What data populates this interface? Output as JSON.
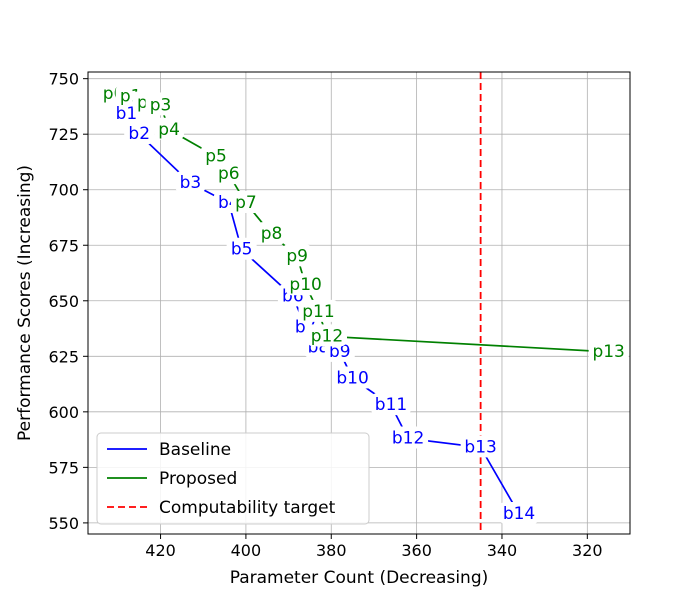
{
  "chart_data": {
    "type": "line",
    "title": "",
    "xlabel": "Parameter Count (Decreasing)",
    "ylabel": "Performance Scores (Increasing)",
    "xlim": [
      437,
      310
    ],
    "ylim": [
      545,
      753
    ],
    "x_ticks": [
      420,
      400,
      380,
      360,
      340,
      320
    ],
    "y_ticks": [
      550,
      575,
      600,
      625,
      650,
      675,
      700,
      725,
      750
    ],
    "grid": true,
    "legend_position": "bottom-left",
    "series": [
      {
        "name": "Baseline",
        "color": "#0000ff",
        "points": [
          {
            "label": "b0",
            "x": 431,
            "y": 743
          },
          {
            "label": "b1",
            "x": 428,
            "y": 734
          },
          {
            "label": "b2",
            "x": 425,
            "y": 725
          },
          {
            "label": "b3",
            "x": 413,
            "y": 703
          },
          {
            "label": "b4",
            "x": 404,
            "y": 694
          },
          {
            "label": "b5",
            "x": 401,
            "y": 673
          },
          {
            "label": "b6",
            "x": 389,
            "y": 652
          },
          {
            "label": "b7",
            "x": 386,
            "y": 638
          },
          {
            "label": "b8",
            "x": 383,
            "y": 629
          },
          {
            "label": "b9",
            "x": 378,
            "y": 627
          },
          {
            "label": "b10",
            "x": 375,
            "y": 615
          },
          {
            "label": "b11",
            "x": 366,
            "y": 603
          },
          {
            "label": "b12",
            "x": 362,
            "y": 588
          },
          {
            "label": "b13",
            "x": 345,
            "y": 584
          },
          {
            "label": "b14",
            "x": 336,
            "y": 554
          }
        ]
      },
      {
        "name": "Proposed",
        "color": "#008000",
        "points": [
          {
            "label": "p0",
            "x": 431,
            "y": 743
          },
          {
            "label": "p1",
            "x": 427,
            "y": 742
          },
          {
            "label": "p2",
            "x": 423,
            "y": 739
          },
          {
            "label": "p3",
            "x": 420,
            "y": 738
          },
          {
            "label": "p4",
            "x": 418,
            "y": 727
          },
          {
            "label": "p5",
            "x": 407,
            "y": 715
          },
          {
            "label": "p6",
            "x": 404,
            "y": 707
          },
          {
            "label": "p7",
            "x": 400,
            "y": 694
          },
          {
            "label": "p8",
            "x": 394,
            "y": 680
          },
          {
            "label": "p9",
            "x": 388,
            "y": 670
          },
          {
            "label": "p10",
            "x": 386,
            "y": 657
          },
          {
            "label": "p11",
            "x": 383,
            "y": 645
          },
          {
            "label": "p12",
            "x": 381,
            "y": 634
          },
          {
            "label": "p13",
            "x": 315,
            "y": 627
          }
        ]
      }
    ],
    "reference_lines": [
      {
        "name": "Computability target",
        "x": 345,
        "color": "#ff0000",
        "style": "dashed"
      }
    ]
  }
}
